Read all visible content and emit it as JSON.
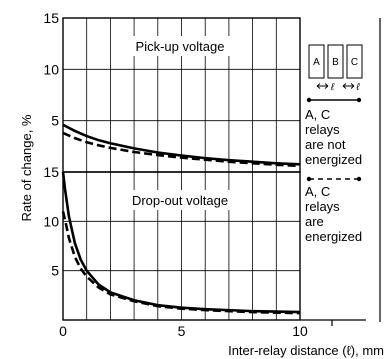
{
  "chart_data": [
    {
      "type": "line",
      "title": "Pick-up voltage",
      "xlabel": "Inter-relay distance (ℓ), mm",
      "ylabel": "Rate of change, %",
      "xlim": [
        0,
        10
      ],
      "ylim": [
        0,
        15
      ],
      "x_ticks": [
        "0",
        "5",
        "10"
      ],
      "y_ticks": [
        "5",
        "10",
        "15"
      ],
      "grid": true,
      "series": [
        {
          "name": "A, C relays are not energized",
          "style": "solid",
          "x": [
            0,
            0.5,
            1,
            1.5,
            2,
            3,
            4,
            5,
            6,
            7,
            8,
            9,
            10
          ],
          "y": [
            4.6,
            4.0,
            3.5,
            3.1,
            2.8,
            2.3,
            1.9,
            1.6,
            1.35,
            1.15,
            1.0,
            0.85,
            0.75
          ]
        },
        {
          "name": "A, C relays are energized",
          "style": "dashed",
          "x": [
            0,
            0.5,
            1,
            1.5,
            2,
            3,
            4,
            5,
            6,
            7,
            8,
            9,
            10
          ],
          "y": [
            3.8,
            3.3,
            2.9,
            2.6,
            2.35,
            1.95,
            1.65,
            1.4,
            1.2,
            1.0,
            0.85,
            0.7,
            0.6
          ]
        }
      ]
    },
    {
      "type": "line",
      "title": "Drop-out voltage",
      "xlabel": "Inter-relay distance (ℓ), mm",
      "ylabel": "Rate of change, %",
      "xlim": [
        0,
        10
      ],
      "ylim": [
        0,
        15
      ],
      "x_ticks": [
        "0",
        "5",
        "10"
      ],
      "y_ticks": [
        "5",
        "10",
        "15"
      ],
      "grid": true,
      "series": [
        {
          "name": "A, C relays are not energized",
          "style": "solid",
          "x": [
            0,
            0.1,
            0.25,
            0.5,
            0.75,
            1,
            1.5,
            2,
            3,
            4,
            5,
            6,
            7,
            8,
            9,
            10
          ],
          "y": [
            15,
            13.0,
            10.5,
            7.8,
            6.1,
            5.0,
            3.6,
            2.8,
            2.0,
            1.5,
            1.25,
            1.1,
            1.0,
            0.9,
            0.85,
            0.8
          ]
        },
        {
          "name": "A, C relays are energized",
          "style": "dashed",
          "x": [
            0,
            0.1,
            0.25,
            0.5,
            0.75,
            1,
            1.5,
            2,
            3,
            4,
            5,
            6,
            7,
            8,
            9,
            10
          ],
          "y": [
            11.0,
            10.0,
            8.3,
            6.4,
            5.2,
            4.4,
            3.3,
            2.6,
            1.9,
            1.4,
            1.15,
            1.0,
            0.9,
            0.8,
            0.75,
            0.7
          ]
        }
      ]
    }
  ],
  "figure": {
    "x_axis_label": "Inter-relay distance (ℓ), mm",
    "y_axis_label": "Rate of change, %"
  },
  "legend": {
    "relay_labels": [
      "A",
      "B",
      "C"
    ],
    "spacing_label": "ℓ",
    "solid_text": [
      "A, C",
      "relays",
      "are not",
      "energized"
    ],
    "dashed_text": [
      "A, C",
      "relays",
      "are",
      "energized"
    ]
  }
}
